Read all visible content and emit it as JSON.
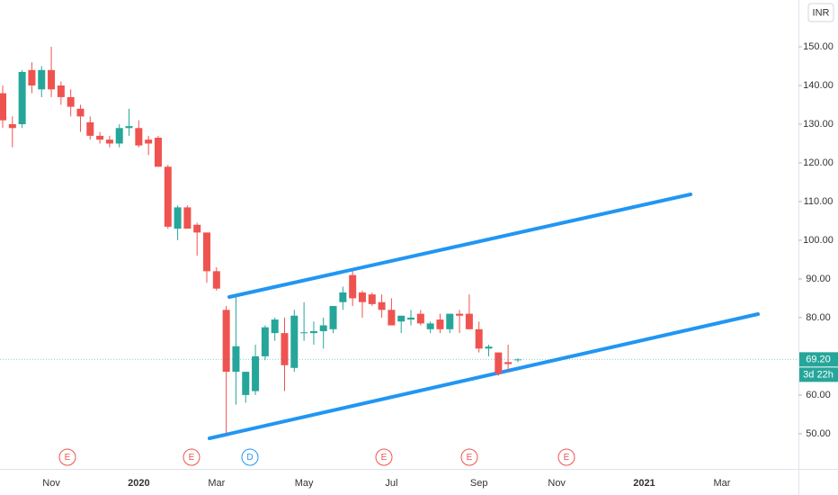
{
  "chart_data": {
    "type": "candlestick",
    "categories": [
      null,
      null,
      null,
      null,
      null,
      "Nov",
      null,
      null,
      null,
      null,
      null,
      null,
      null,
      null,
      "2020",
      null,
      null,
      null,
      null,
      null,
      null,
      null,
      "Mar",
      null,
      null,
      null,
      null,
      null,
      null,
      null,
      null,
      "May",
      null,
      null,
      null,
      null,
      null,
      null,
      null,
      null,
      "Jul",
      null,
      null,
      null,
      null,
      null,
      null,
      null,
      null,
      "Sep",
      null,
      null,
      null,
      null,
      null,
      null,
      null,
      "Nov",
      null,
      null,
      null,
      null,
      null,
      null,
      null,
      null,
      "2021",
      null,
      null,
      null,
      null,
      null,
      null,
      null,
      "Mar",
      null,
      null,
      null,
      null,
      null,
      null,
      null
    ],
    "open": [
      138,
      130,
      130,
      144,
      139,
      144,
      140,
      137,
      134,
      130.5,
      127,
      126,
      125,
      129,
      129,
      126,
      126.5,
      119,
      103,
      108.5,
      104,
      102,
      92,
      82,
      66,
      60,
      61,
      70,
      76,
      76,
      67,
      76,
      76,
      76.5,
      77,
      84,
      91,
      86.5,
      86,
      84,
      82,
      79,
      79.5,
      81,
      77,
      79.5,
      77,
      81,
      81,
      77,
      72,
      71,
      68.5,
      69,
      null,
      null,
      null,
      null,
      null,
      null,
      null,
      null,
      null,
      null,
      null,
      null,
      null,
      null,
      null,
      null,
      null,
      null,
      null,
      null,
      null,
      null,
      null,
      null,
      null,
      null,
      null,
      null
    ],
    "high": [
      140,
      132,
      144,
      146,
      145,
      150,
      141,
      139,
      135,
      132,
      128,
      127,
      130,
      134,
      131,
      127,
      127,
      119.5,
      109,
      109,
      104.5,
      102,
      93,
      83,
      86,
      66,
      73,
      78,
      80,
      80,
      82,
      84,
      79,
      80,
      83,
      88,
      92,
      87,
      86.5,
      86,
      85,
      80,
      82,
      82,
      79,
      81,
      81,
      82,
      86,
      79,
      73,
      71,
      73,
      69.5,
      null,
      null,
      null,
      null,
      null,
      null,
      null,
      null,
      null,
      null,
      null,
      null,
      null,
      null,
      null,
      null,
      null,
      null,
      null,
      null,
      null,
      null,
      null,
      null,
      null,
      null,
      null,
      null
    ],
    "low": [
      129,
      124,
      129,
      138,
      137,
      137,
      135,
      132,
      128,
      126,
      125,
      124,
      124,
      127,
      124,
      122,
      119,
      103,
      100,
      103,
      96,
      89,
      87,
      50,
      57.5,
      58,
      60,
      69,
      74,
      61,
      66,
      74,
      73,
      72,
      76,
      82,
      83,
      80,
      83,
      80,
      78,
      76,
      78,
      78,
      76,
      76,
      76,
      76,
      77,
      71,
      70,
      65,
      66,
      68.5,
      null,
      null,
      null,
      null,
      null,
      null,
      null,
      null,
      null,
      null,
      null,
      null,
      null,
      null,
      null,
      null,
      null,
      null,
      null,
      null,
      null,
      null,
      null,
      null,
      null,
      null,
      null,
      null
    ],
    "close": [
      131,
      129,
      143.5,
      140,
      144,
      139,
      137,
      134.5,
      132,
      127,
      126,
      125,
      129,
      129.5,
      124.5,
      125,
      119,
      103.5,
      108.5,
      103,
      102,
      92,
      87.5,
      66,
      72.6,
      66,
      70,
      77.5,
      79.5,
      67.7,
      80.5,
      76.2,
      76.5,
      78,
      83,
      86.5,
      85,
      84,
      83.5,
      82,
      78,
      80.5,
      80,
      78.5,
      78.5,
      77,
      81,
      80.5,
      77,
      72,
      72.5,
      65.5,
      68,
      69.2,
      null,
      null,
      null,
      null,
      null,
      null,
      null,
      null,
      null,
      null,
      null,
      null,
      null,
      null,
      null,
      null,
      null,
      null,
      null,
      null,
      null,
      null,
      null,
      null,
      null,
      null,
      null,
      null
    ],
    "up_color": "#26a69a",
    "down_color": "#ef5350",
    "ylim": [
      40.9,
      162.1
    ],
    "yticks": [
      {
        "value": 50,
        "label": "50.00"
      },
      {
        "value": 60,
        "label": "60.00"
      },
      {
        "value": 80,
        "label": "80.00"
      },
      {
        "value": 90,
        "label": "90.00"
      },
      {
        "value": 100,
        "label": "100.00"
      },
      {
        "value": 110,
        "label": "110.00"
      },
      {
        "value": 120,
        "label": "120.00"
      },
      {
        "value": 130,
        "label": "130.00"
      },
      {
        "value": 140,
        "label": "140.00"
      },
      {
        "value": 150,
        "label": "150.00"
      }
    ],
    "grid": false,
    "currency": "INR",
    "last_price": {
      "value": 69.2,
      "label": "69.20"
    },
    "countdown": "3d 22h",
    "events": [
      "E",
      "E",
      "D",
      "E",
      "E",
      "E"
    ]
  }
}
